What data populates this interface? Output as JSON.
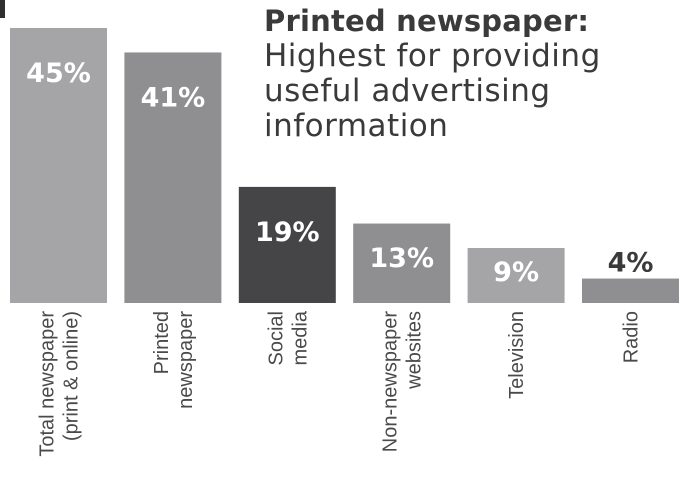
{
  "headline": {
    "title": "Printed newspaper:",
    "lines": [
      "Highest for providing",
      "useful advertising",
      "information"
    ]
  },
  "chart_data": {
    "type": "bar",
    "title": "Printed newspaper: Highest for providing useful advertising information",
    "categories": [
      [
        "Total newspaper",
        "(print & online)"
      ],
      [
        "Printed",
        "newspaper"
      ],
      [
        "Social",
        "media"
      ],
      [
        "Non-newspaper",
        "websites"
      ],
      [
        "Television"
      ],
      [
        "Radio"
      ]
    ],
    "values": [
      45,
      41,
      19,
      13,
      9,
      4
    ],
    "value_labels": [
      "45%",
      "41%",
      "19%",
      "13%",
      "9%",
      "4%"
    ],
    "unit": "%",
    "colors": [
      "#a5a5a7",
      "#8f8f91",
      "#454547",
      "#8f8f91",
      "#a5a5a7",
      "#8f8f91"
    ],
    "label_colors": [
      "#ffffff",
      "#ffffff",
      "#ffffff",
      "#ffffff",
      "#ffffff",
      "#3a3a3a"
    ],
    "label_position": [
      "inside",
      "inside",
      "inside",
      "inside",
      "inside",
      "above"
    ],
    "ylim": [
      0,
      45
    ],
    "grid": false,
    "legend": "none"
  }
}
